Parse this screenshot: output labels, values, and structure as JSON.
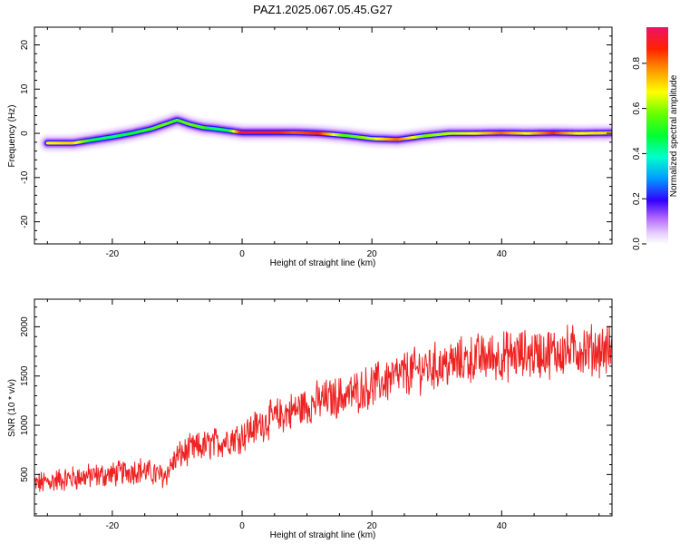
{
  "title": "PAZ1.2025.067.05.45.G27",
  "chart_data": [
    {
      "type": "heatmap",
      "xlabel": "Height of straight line (km)",
      "ylabel": "Frequency (Hz)",
      "xlim": [
        -32,
        57
      ],
      "ylim": [
        -25,
        24
      ],
      "xticks": [
        -20,
        0,
        20,
        40
      ],
      "yticks": [
        -20,
        -10,
        0,
        10,
        20
      ],
      "colorbar": {
        "label": "Normalized spectral amplitude",
        "range": [
          0,
          0.96
        ],
        "ticks": [
          0.0,
          0.2,
          0.4,
          0.6,
          0.8
        ]
      },
      "ridge": {
        "height_km": [
          -30,
          -26,
          -23,
          -20,
          -17,
          -14,
          -12,
          -10,
          -8,
          -6,
          -4,
          -2,
          0,
          4,
          8,
          12,
          16,
          20,
          24,
          28,
          32,
          36,
          40,
          44,
          48,
          52,
          57
        ],
        "frequency_hz": [
          -2.2,
          -2.2,
          -1.5,
          -0.8,
          0,
          1,
          2,
          3,
          2,
          1.3,
          1,
          0.6,
          0.2,
          0.2,
          0.2,
          0,
          -0.5,
          -1.2,
          -1.4,
          -0.6,
          0,
          0,
          0.1,
          0,
          0.1,
          0,
          0.1
        ],
        "amplitude": [
          0.7,
          0.75,
          0.5,
          0.45,
          0.5,
          0.55,
          0.6,
          0.55,
          0.6,
          0.55,
          0.45,
          0.5,
          0.95,
          0.95,
          0.85,
          0.9,
          0.55,
          0.65,
          0.85,
          0.6,
          0.65,
          0.7,
          0.85,
          0.7,
          0.9,
          0.7,
          0.75
        ]
      }
    },
    {
      "type": "line",
      "xlabel": "Height of straight line (km)",
      "ylabel": "SNR (10 * v/v)",
      "xlim": [
        -32,
        57
      ],
      "ylim": [
        80,
        2280
      ],
      "xticks": [
        -20,
        0,
        20,
        40
      ],
      "yticks": [
        500,
        1000,
        1500,
        2000
      ],
      "line_color": "#ee2222",
      "x": [
        -32,
        -28,
        -24,
        -20,
        -16,
        -12,
        -10,
        -8,
        -4,
        0,
        4,
        8,
        12,
        16,
        20,
        24,
        28,
        32,
        36,
        40,
        44,
        48,
        52,
        57
      ],
      "y": [
        400,
        450,
        480,
        500,
        550,
        480,
        680,
        750,
        820,
        900,
        1050,
        1150,
        1250,
        1300,
        1400,
        1500,
        1580,
        1620,
        1680,
        1700,
        1720,
        1740,
        1770,
        1760
      ]
    }
  ]
}
